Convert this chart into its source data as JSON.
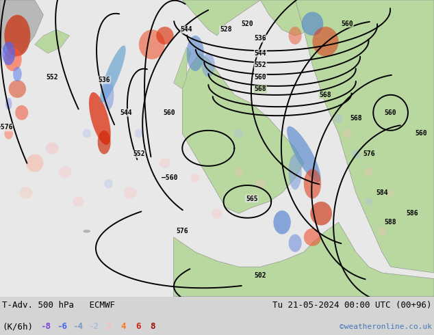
{
  "title_left": "T-Adv. 500 hPa   ECMWF",
  "title_right": "Tu 21-05-2024 00:00 UTC (00+96)",
  "legend_label": "(K/6h)",
  "legend_values": [
    "-8",
    "-6",
    "-4",
    "-2",
    "2",
    "4",
    "6",
    "8"
  ],
  "legend_colors": [
    "#7744dd",
    "#4466ee",
    "#7799cc",
    "#aabbdd",
    "#ffbbbb",
    "#ff7722",
    "#cc2211",
    "#991100"
  ],
  "credit": "©weatheronline.co.uk",
  "credit_color": "#4477bb",
  "bottom_bg": "#d4d4d4",
  "ocean_bg": "#e8e8e8",
  "land_green": "#b8d8a0",
  "land_gray": "#b8b8b8",
  "fig_width": 6.34,
  "fig_height": 4.9,
  "dpi": 100
}
